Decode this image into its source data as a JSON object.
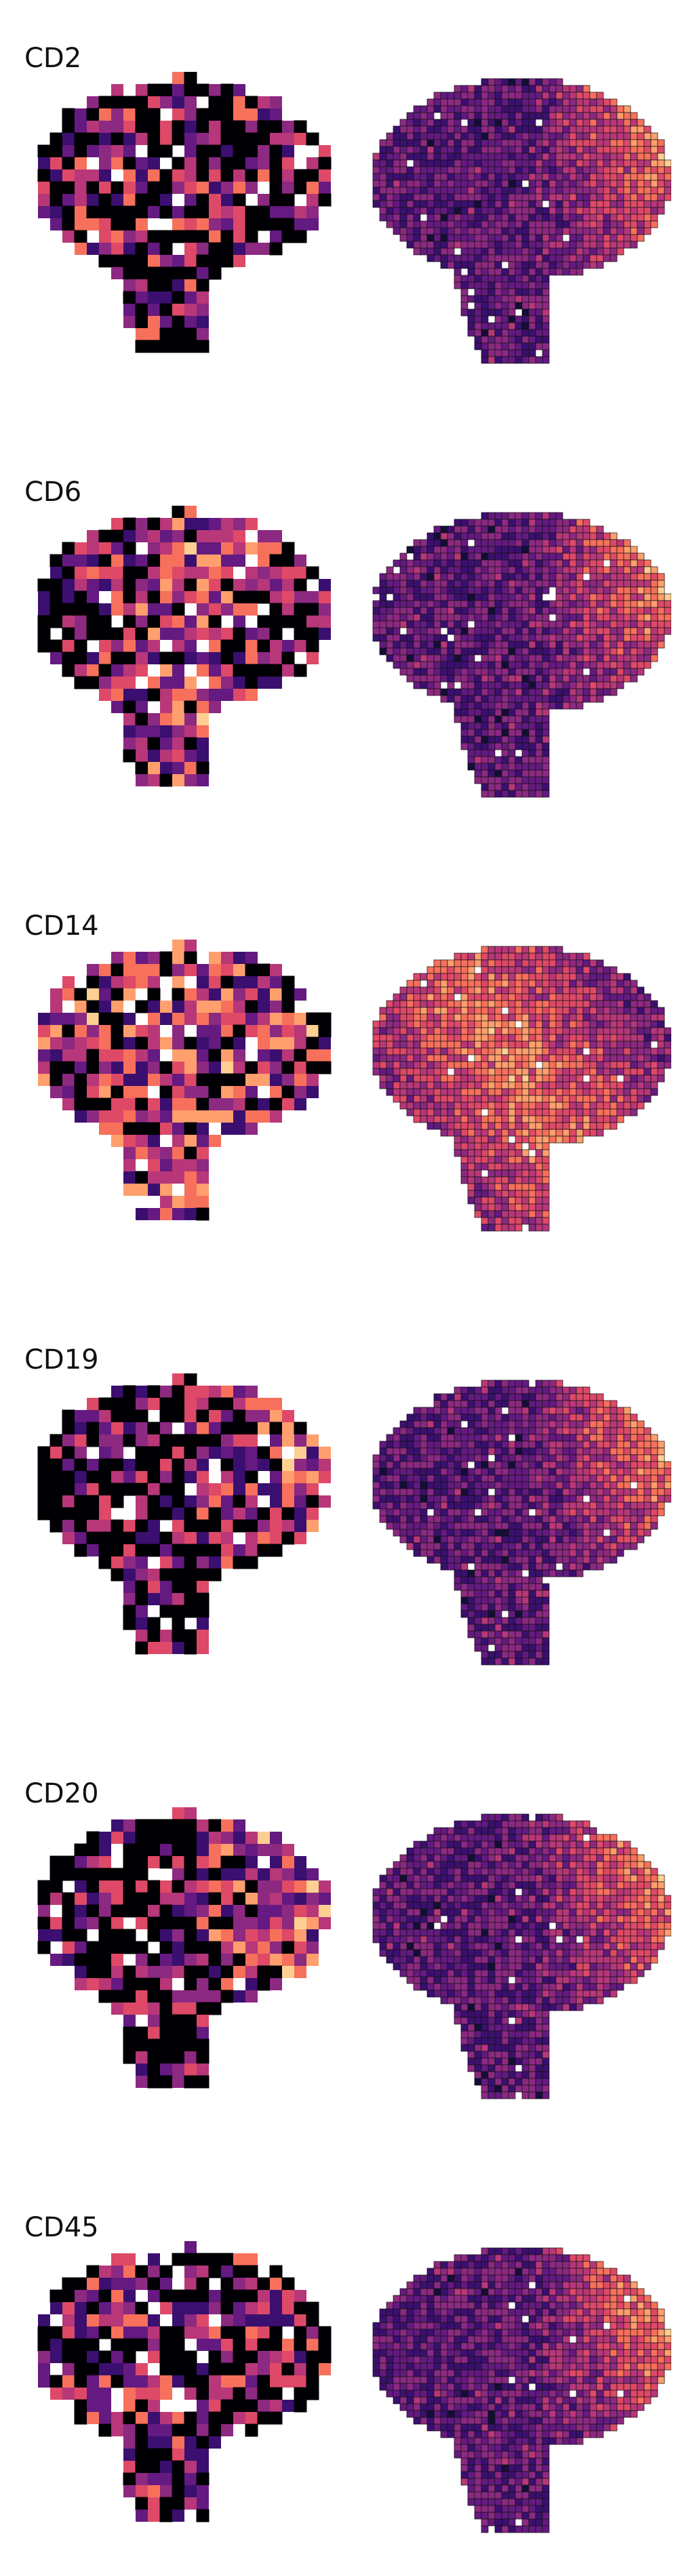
{
  "panels": [
    {
      "label": "CD2",
      "seed": 11,
      "left_bias": "sparse-left",
      "right_bias": "top-right"
    },
    {
      "label": "CD6",
      "seed": 23,
      "left_bias": "center",
      "right_bias": "top-right"
    },
    {
      "label": "CD14",
      "seed": 37,
      "left_bias": "dense",
      "right_bias": "diagonal"
    },
    {
      "label": "CD19",
      "seed": 41,
      "left_bias": "top-right",
      "right_bias": "top-right"
    },
    {
      "label": "CD20",
      "seed": 53,
      "left_bias": "top-right-strong",
      "right_bias": "top-right"
    },
    {
      "label": "CD45",
      "seed": 67,
      "left_bias": "mixed",
      "right_bias": "top-right"
    }
  ],
  "colors": {
    "background": "#ffffff",
    "cell_stroke": "#111111",
    "palette": [
      "#000004",
      "#140e36",
      "#3b0f70",
      "#641a80",
      "#8c2981",
      "#b73779",
      "#de4968",
      "#f7705c",
      "#fe9f6d",
      "#fecf92",
      "#fcfdbf"
    ]
  }
}
